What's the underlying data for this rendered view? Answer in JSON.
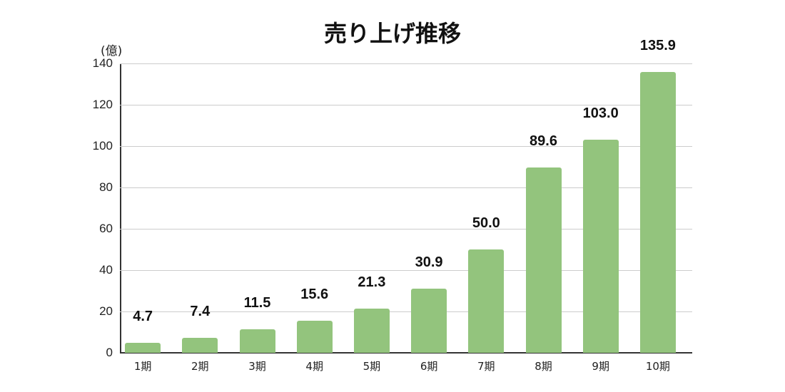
{
  "chart_data": {
    "type": "bar",
    "title": "売り上げ推移",
    "xlabel": "",
    "ylabel": "(億)",
    "categories": [
      "1期",
      "2期",
      "3期",
      "4期",
      "5期",
      "6期",
      "7期",
      "8期",
      "9期",
      "10期"
    ],
    "values": [
      4.7,
      7.4,
      11.5,
      15.6,
      21.3,
      30.9,
      50.0,
      89.6,
      103.0,
      135.9
    ],
    "value_labels": [
      "4.7",
      "7.4",
      "11.5",
      "15.6",
      "21.3",
      "30.9",
      "50.0",
      "89.6",
      "103.0",
      "135.9"
    ],
    "ylim": [
      0,
      140
    ],
    "yticks": [
      "0",
      "20",
      "40",
      "60",
      "80",
      "100",
      "120",
      "140"
    ],
    "grid": true,
    "legend": "none",
    "bar_color": "#93c47d"
  }
}
